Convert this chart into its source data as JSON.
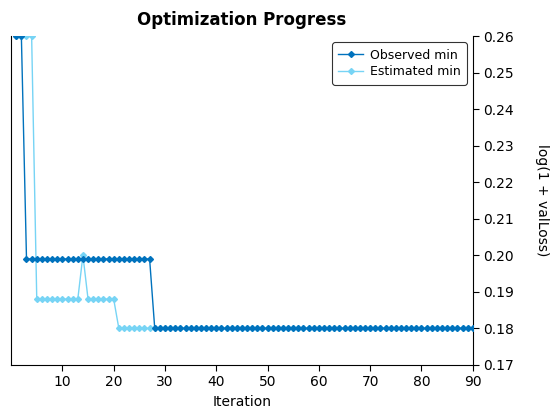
{
  "title": "Optimization Progress",
  "xlabel": "Iteration",
  "ylabel": "log(1 + valLoss)",
  "xlim": [
    0,
    90
  ],
  "ylim": [
    0.17,
    0.26
  ],
  "yticks": [
    0.17,
    0.18,
    0.19,
    0.2,
    0.21,
    0.22,
    0.23,
    0.24,
    0.25,
    0.26
  ],
  "xticks": [
    10,
    20,
    30,
    40,
    50,
    60,
    70,
    80,
    90
  ],
  "observed_color": "#0072bd",
  "estimated_color": "#77d4f5",
  "observed_label": "Observed min",
  "estimated_label": "Estimated min",
  "observed_x": [
    1,
    2,
    3,
    4,
    5,
    6,
    7,
    8,
    9,
    10,
    11,
    12,
    13,
    14,
    15,
    16,
    17,
    18,
    19,
    20,
    21,
    22,
    23,
    24,
    25,
    26,
    27,
    28,
    29,
    30,
    31,
    32,
    33,
    34,
    35,
    36,
    37,
    38,
    39,
    40,
    41,
    42,
    43,
    44,
    45,
    46,
    47,
    48,
    49,
    50,
    51,
    52,
    53,
    54,
    55,
    56,
    57,
    58,
    59,
    60,
    61,
    62,
    63,
    64,
    65,
    66,
    67,
    68,
    69,
    70,
    71,
    72,
    73,
    74,
    75,
    76,
    77,
    78,
    79,
    80,
    81,
    82,
    83,
    84,
    85,
    86,
    87,
    88,
    89,
    90
  ],
  "observed_y": [
    0.26,
    0.26,
    0.199,
    0.199,
    0.199,
    0.199,
    0.199,
    0.199,
    0.199,
    0.199,
    0.199,
    0.199,
    0.199,
    0.199,
    0.199,
    0.199,
    0.199,
    0.199,
    0.199,
    0.199,
    0.199,
    0.199,
    0.199,
    0.199,
    0.199,
    0.199,
    0.199,
    0.18,
    0.18,
    0.18,
    0.18,
    0.18,
    0.18,
    0.18,
    0.18,
    0.18,
    0.18,
    0.18,
    0.18,
    0.18,
    0.18,
    0.18,
    0.18,
    0.18,
    0.18,
    0.18,
    0.18,
    0.18,
    0.18,
    0.18,
    0.18,
    0.18,
    0.18,
    0.18,
    0.18,
    0.18,
    0.18,
    0.18,
    0.18,
    0.18,
    0.18,
    0.18,
    0.18,
    0.18,
    0.18,
    0.18,
    0.18,
    0.18,
    0.18,
    0.18,
    0.18,
    0.18,
    0.18,
    0.18,
    0.18,
    0.18,
    0.18,
    0.18,
    0.18,
    0.18,
    0.18,
    0.18,
    0.18,
    0.18,
    0.18,
    0.18,
    0.18,
    0.18,
    0.18,
    0.18
  ],
  "estimated_x": [
    1,
    2,
    3,
    4,
    5,
    6,
    7,
    8,
    9,
    10,
    11,
    12,
    13,
    14,
    15,
    16,
    17,
    18,
    19,
    20,
    21,
    22,
    23,
    24,
    25,
    26,
    27,
    28,
    29,
    30,
    31,
    32,
    33,
    34,
    35,
    36,
    37,
    38,
    39,
    40,
    41,
    42,
    43,
    44,
    45,
    46,
    47,
    48,
    49,
    50,
    51,
    52,
    53,
    54,
    55,
    56,
    57,
    58,
    59,
    60,
    61,
    62,
    63,
    64,
    65,
    66,
    67,
    68,
    69,
    70,
    71,
    72,
    73,
    74,
    75,
    76,
    77,
    78,
    79,
    80,
    81,
    82,
    83,
    84,
    85,
    86,
    87,
    88,
    89,
    90
  ],
  "estimated_y": [
    0.26,
    0.26,
    0.26,
    0.26,
    0.188,
    0.188,
    0.188,
    0.188,
    0.188,
    0.188,
    0.188,
    0.188,
    0.188,
    0.2,
    0.188,
    0.188,
    0.188,
    0.188,
    0.188,
    0.188,
    0.18,
    0.18,
    0.18,
    0.18,
    0.18,
    0.18,
    0.18,
    0.18,
    0.18,
    0.18,
    0.18,
    0.18,
    0.18,
    0.18,
    0.18,
    0.18,
    0.18,
    0.18,
    0.18,
    0.18,
    0.18,
    0.18,
    0.18,
    0.18,
    0.18,
    0.18,
    0.18,
    0.18,
    0.18,
    0.18,
    0.18,
    0.18,
    0.18,
    0.18,
    0.18,
    0.18,
    0.18,
    0.18,
    0.18,
    0.18,
    0.18,
    0.18,
    0.18,
    0.18,
    0.18,
    0.18,
    0.18,
    0.18,
    0.18,
    0.18,
    0.18,
    0.18,
    0.18,
    0.18,
    0.18,
    0.18,
    0.18,
    0.18,
    0.18,
    0.18,
    0.18,
    0.18,
    0.18,
    0.18,
    0.18,
    0.18,
    0.18,
    0.18,
    0.18,
    0.18
  ],
  "bg_color": "#ffffff",
  "title_fontsize": 12,
  "label_fontsize": 10,
  "tick_fontsize": 10,
  "legend_fontsize": 9
}
